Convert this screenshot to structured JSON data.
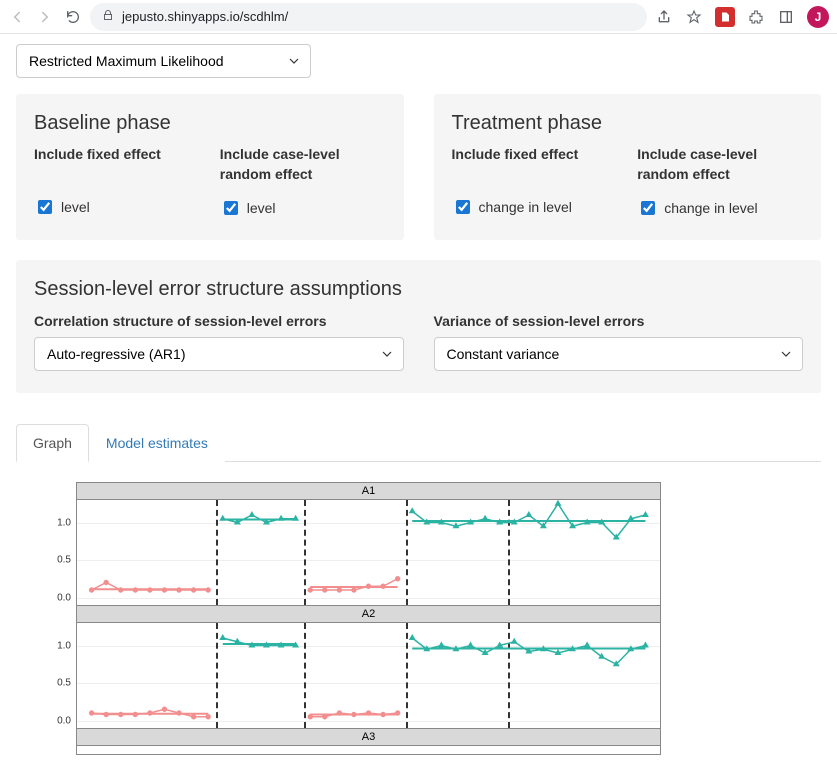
{
  "browser": {
    "url": "jepusto.shinyapps.io/scdhlm/",
    "avatar_initial": "J"
  },
  "estimation_method": {
    "selected": "Restricted Maximum Likelihood"
  },
  "phases": {
    "baseline": {
      "title": "Baseline phase",
      "fixed_label": "Include fixed effect",
      "random_label": "Include case-level random effect",
      "fixed_check_label": "level",
      "random_check_label": "level"
    },
    "treatment": {
      "title": "Treatment phase",
      "fixed_label": "Include fixed effect",
      "random_label": "Include case-level random effect",
      "fixed_check_label": "change in level",
      "random_check_label": "change in level"
    }
  },
  "session_errors": {
    "title": "Session-level error structure assumptions",
    "corr_label": "Correlation structure of session-level errors",
    "corr_selected": "Auto-regressive (AR1)",
    "var_label": "Variance of session-level errors",
    "var_selected": "Constant variance"
  },
  "tabs": {
    "graph": "Graph",
    "model_estimates": "Model estimates"
  },
  "plot": {
    "facets": [
      "A1",
      "A2",
      "A3"
    ],
    "y_ticks": [
      0.0,
      0.5,
      1.0
    ],
    "y_tick_labels": [
      "0.0",
      "0.5",
      "1.0"
    ],
    "ylim": [
      -0.1,
      1.3
    ],
    "x_domain": [
      0,
      40
    ],
    "phase_breaks": [
      9.5,
      15.5,
      22.5,
      29.5
    ],
    "colors": {
      "baseline": "#f28e8e",
      "treatment": "#2bb3a3",
      "grid": "#eeeeee",
      "dash": "#333333",
      "strip_bg": "#d9d9d9"
    },
    "A1": {
      "segments": [
        {
          "type": "baseline",
          "x": [
            1,
            2,
            3,
            4,
            5,
            6,
            7,
            8,
            9
          ],
          "y": [
            0.1,
            0.2,
            0.1,
            0.1,
            0.1,
            0.1,
            0.1,
            0.1,
            0.1
          ],
          "fit": 0.11
        },
        {
          "type": "treatment",
          "x": [
            10,
            11,
            12,
            13,
            14,
            15
          ],
          "y": [
            1.05,
            1.0,
            1.1,
            1.0,
            1.05,
            1.05
          ],
          "fit": 1.04
        },
        {
          "type": "baseline",
          "x": [
            16,
            17,
            18,
            19,
            20,
            21,
            22
          ],
          "y": [
            0.1,
            0.1,
            0.1,
            0.1,
            0.15,
            0.15,
            0.25
          ],
          "fit": 0.14
        },
        {
          "type": "treatment",
          "x": [
            23,
            24,
            25,
            26,
            27,
            28,
            29,
            30,
            31,
            32,
            33,
            34,
            35,
            36,
            37,
            38,
            39
          ],
          "y": [
            1.15,
            1.0,
            1.0,
            0.95,
            1.0,
            1.05,
            1.0,
            1.0,
            1.1,
            0.95,
            1.25,
            0.95,
            1.0,
            1.0,
            0.8,
            1.05,
            1.1
          ],
          "fit": 1.02
        }
      ]
    },
    "A2": {
      "segments": [
        {
          "type": "baseline",
          "x": [
            1,
            2,
            3,
            4,
            5,
            6,
            7,
            8,
            9
          ],
          "y": [
            0.1,
            0.08,
            0.08,
            0.08,
            0.1,
            0.15,
            0.1,
            0.05,
            0.05
          ],
          "fit": 0.09
        },
        {
          "type": "treatment",
          "x": [
            10,
            11,
            12,
            13,
            14,
            15
          ],
          "y": [
            1.1,
            1.05,
            1.0,
            1.0,
            1.0,
            1.0
          ],
          "fit": 1.02
        },
        {
          "type": "baseline",
          "x": [
            16,
            17,
            18,
            19,
            20,
            21,
            22
          ],
          "y": [
            0.05,
            0.05,
            0.1,
            0.08,
            0.1,
            0.08,
            0.1
          ],
          "fit": 0.08
        },
        {
          "type": "treatment",
          "x": [
            23,
            24,
            25,
            26,
            27,
            28,
            29,
            30,
            31,
            32,
            33,
            34,
            35,
            36,
            37,
            38,
            39
          ],
          "y": [
            1.1,
            0.95,
            1.0,
            0.95,
            1.0,
            0.9,
            1.0,
            1.05,
            0.92,
            0.95,
            0.9,
            0.95,
            1.0,
            0.85,
            0.75,
            0.95,
            1.0
          ],
          "fit": 0.96
        }
      ]
    }
  }
}
